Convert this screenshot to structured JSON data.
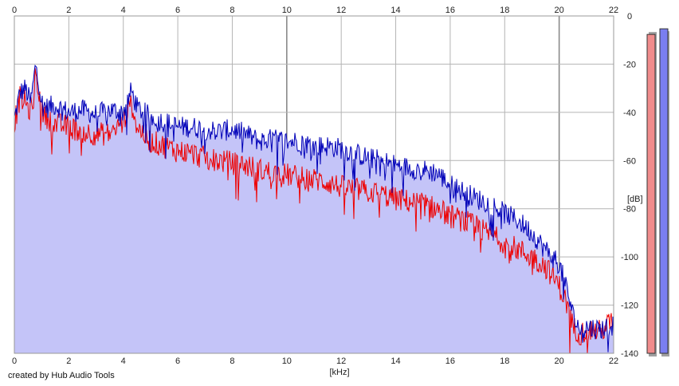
{
  "chart_data": {
    "type": "area",
    "x_unit_label": "[kHz]",
    "y_unit_label": "[dB]",
    "xlim": [
      0,
      22
    ],
    "ylim": [
      -140,
      0
    ],
    "x_ticks": [
      "0",
      "2",
      "4",
      "6",
      "8",
      "10",
      "12",
      "14",
      "16",
      "18",
      "20",
      "22"
    ],
    "y_ticks": [
      "0",
      "-20",
      "-40",
      "-60",
      "-80",
      "-100",
      "-120",
      "-140"
    ],
    "grid": true,
    "series": [
      {
        "color": "#0000b8",
        "fill": "#c4c4f8",
        "points": [
          [
            0,
            -43
          ],
          [
            0.2,
            -32
          ],
          [
            0.4,
            -30
          ],
          [
            0.6,
            -36
          ],
          [
            0.8,
            -19
          ],
          [
            1.0,
            -36
          ],
          [
            1.2,
            -38
          ],
          [
            1.5,
            -37
          ],
          [
            2.0,
            -40
          ],
          [
            2.5,
            -39
          ],
          [
            3.0,
            -41
          ],
          [
            3.5,
            -39
          ],
          [
            4.0,
            -40
          ],
          [
            4.3,
            -31
          ],
          [
            4.5,
            -38
          ],
          [
            5.0,
            -42
          ],
          [
            5.5,
            -44
          ],
          [
            6.0,
            -46
          ],
          [
            6.5,
            -46
          ],
          [
            7.0,
            -47
          ],
          [
            7.5,
            -48
          ],
          [
            8.0,
            -47
          ],
          [
            8.5,
            -49
          ],
          [
            9.0,
            -52
          ],
          [
            9.5,
            -51
          ],
          [
            10.0,
            -52
          ],
          [
            10.5,
            -52
          ],
          [
            11.0,
            -54
          ],
          [
            11.5,
            -54
          ],
          [
            12.0,
            -55
          ],
          [
            12.5,
            -57
          ],
          [
            13.0,
            -59
          ],
          [
            13.5,
            -60
          ],
          [
            14.0,
            -62
          ],
          [
            14.5,
            -63
          ],
          [
            15.0,
            -64
          ],
          [
            15.5,
            -65
          ],
          [
            16.0,
            -70
          ],
          [
            16.5,
            -73
          ],
          [
            17.0,
            -76
          ],
          [
            17.5,
            -78
          ],
          [
            18.0,
            -82
          ],
          [
            18.5,
            -85
          ],
          [
            19.0,
            -90
          ],
          [
            19.5,
            -97
          ],
          [
            20.0,
            -103
          ],
          [
            20.3,
            -114
          ],
          [
            20.5,
            -124
          ],
          [
            20.8,
            -131
          ],
          [
            21.0,
            -129
          ],
          [
            21.5,
            -130
          ],
          [
            22.0,
            -128
          ]
        ]
      },
      {
        "color": "#ee0000",
        "points": [
          [
            0,
            -45
          ],
          [
            0.2,
            -34
          ],
          [
            0.4,
            -36
          ],
          [
            0.6,
            -40
          ],
          [
            0.8,
            -23
          ],
          [
            1.0,
            -40
          ],
          [
            1.5,
            -45
          ],
          [
            2.0,
            -46
          ],
          [
            2.5,
            -48
          ],
          [
            3.0,
            -49
          ],
          [
            3.5,
            -49
          ],
          [
            4.0,
            -44
          ],
          [
            4.3,
            -36
          ],
          [
            4.5,
            -46
          ],
          [
            5.0,
            -52
          ],
          [
            5.5,
            -54
          ],
          [
            6.0,
            -56
          ],
          [
            6.5,
            -57
          ],
          [
            7.0,
            -59
          ],
          [
            7.5,
            -60
          ],
          [
            8.0,
            -61
          ],
          [
            8.5,
            -62
          ],
          [
            9.0,
            -64
          ],
          [
            9.5,
            -65
          ],
          [
            10.0,
            -66
          ],
          [
            10.5,
            -67
          ],
          [
            11.0,
            -68
          ],
          [
            11.5,
            -69
          ],
          [
            12.0,
            -71
          ],
          [
            12.5,
            -72
          ],
          [
            13.0,
            -73
          ],
          [
            13.5,
            -74
          ],
          [
            14.0,
            -76
          ],
          [
            14.5,
            -77
          ],
          [
            15.0,
            -78
          ],
          [
            15.5,
            -80
          ],
          [
            16.0,
            -83
          ],
          [
            16.5,
            -85
          ],
          [
            17.0,
            -88
          ],
          [
            17.5,
            -91
          ],
          [
            18.0,
            -94
          ],
          [
            18.5,
            -97
          ],
          [
            19.0,
            -100
          ],
          [
            19.5,
            -104
          ],
          [
            20.0,
            -112
          ],
          [
            20.3,
            -120
          ],
          [
            20.5,
            -129
          ],
          [
            20.8,
            -132
          ],
          [
            21.0,
            -130
          ],
          [
            21.5,
            -131
          ],
          [
            22.0,
            -126
          ]
        ]
      }
    ],
    "level_meters": [
      {
        "color": "#f08c8c",
        "level": -0.5
      },
      {
        "color": "#7a7ef0",
        "level": -0.4
      }
    ]
  },
  "footer": {
    "credit": "created by Hub Audio Tools"
  }
}
